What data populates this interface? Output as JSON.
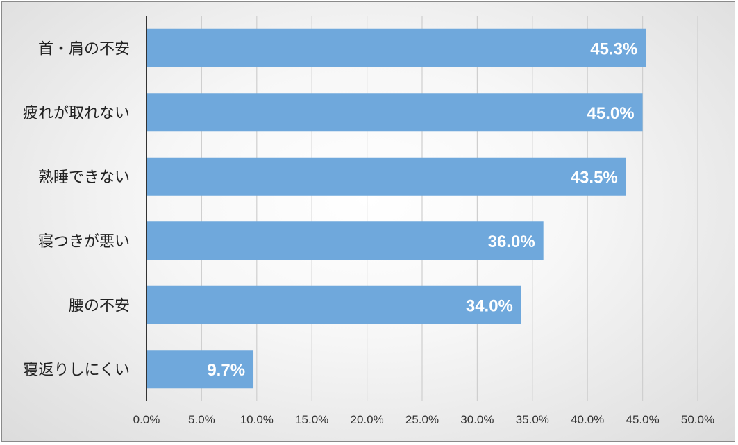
{
  "chart_data": {
    "type": "bar",
    "orientation": "horizontal",
    "categories": [
      "首・肩の不安",
      "疲れが取れない",
      "熟睡できない",
      "寝つきが悪い",
      "腰の不安",
      "寝返りしにくい"
    ],
    "values": [
      45.3,
      45.0,
      43.5,
      36.0,
      34.0,
      9.7
    ],
    "data_labels": [
      "45.3%",
      "45.0%",
      "43.5%",
      "36.0%",
      "34.0%",
      "9.7%"
    ],
    "x_ticks": [
      "0.0%",
      "5.0%",
      "10.0%",
      "15.0%",
      "20.0%",
      "25.0%",
      "30.0%",
      "35.0%",
      "40.0%",
      "45.0%",
      "50.0%"
    ],
    "xlim": [
      0,
      50
    ],
    "title": "",
    "xlabel": "",
    "ylabel": "",
    "grid": "vertical",
    "legend": "none",
    "colors": {
      "bar": "#6fa8dc",
      "grid": "#cfcfcf",
      "axis": "#333333",
      "data_label": "#ffffff"
    }
  }
}
